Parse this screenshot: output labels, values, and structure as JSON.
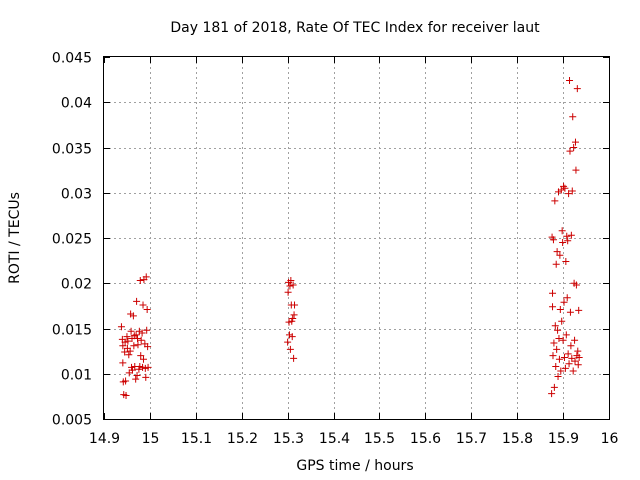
{
  "chart_data": {
    "type": "scatter",
    "title": "Day 181 of 2018, Rate Of TEC Index for receiver laut",
    "xlabel": "GPS time / hours",
    "ylabel": "ROTI / TECUs",
    "xlim": [
      14.9,
      16.0
    ],
    "ylim": [
      0.005,
      0.045
    ],
    "x_ticks": [
      "14.9",
      "15",
      "15.1",
      "15.2",
      "15.3",
      "15.4",
      "15.5",
      "15.6",
      "15.7",
      "15.8",
      "15.9",
      "16"
    ],
    "y_ticks": [
      "0.005",
      "0.01",
      "0.015",
      "0.02",
      "0.025",
      "0.03",
      "0.035",
      "0.04",
      "0.045"
    ],
    "grid": true,
    "marker": "plus",
    "color": "#cc0000",
    "points": [
      [
        14.938,
        0.0152
      ],
      [
        14.94,
        0.0138
      ],
      [
        14.941,
        0.0131
      ],
      [
        14.941,
        0.0112
      ],
      [
        14.942,
        0.0091
      ],
      [
        14.943,
        0.0077
      ],
      [
        14.945,
        0.0124
      ],
      [
        14.946,
        0.0135
      ],
      [
        14.947,
        0.0092
      ],
      [
        14.948,
        0.0076
      ],
      [
        14.95,
        0.0141
      ],
      [
        14.951,
        0.0128
      ],
      [
        14.952,
        0.0136
      ],
      [
        14.954,
        0.0121
      ],
      [
        14.955,
        0.0101
      ],
      [
        14.957,
        0.0125
      ],
      [
        14.958,
        0.0166
      ],
      [
        14.959,
        0.0147
      ],
      [
        14.96,
        0.0107
      ],
      [
        14.961,
        0.0139
      ],
      [
        14.962,
        0.0104
      ],
      [
        14.964,
        0.0164
      ],
      [
        14.965,
        0.0131
      ],
      [
        14.966,
        0.0142
      ],
      [
        14.967,
        0.0108
      ],
      [
        14.969,
        0.0094
      ],
      [
        14.97,
        0.0143
      ],
      [
        14.971,
        0.018
      ],
      [
        14.972,
        0.0098
      ],
      [
        14.973,
        0.0139
      ],
      [
        14.974,
        0.0132
      ],
      [
        14.976,
        0.0105
      ],
      [
        14.977,
        0.0147
      ],
      [
        14.978,
        0.0108
      ],
      [
        14.979,
        0.0203
      ],
      [
        14.98,
        0.012
      ],
      [
        14.981,
        0.0137
      ],
      [
        14.983,
        0.0145
      ],
      [
        14.984,
        0.0107
      ],
      [
        14.985,
        0.0176
      ],
      [
        14.986,
        0.0116
      ],
      [
        14.987,
        0.0204
      ],
      [
        14.989,
        0.0133
      ],
      [
        14.99,
        0.0106
      ],
      [
        14.991,
        0.0096
      ],
      [
        14.992,
        0.0207
      ],
      [
        14.993,
        0.0148
      ],
      [
        14.994,
        0.0171
      ],
      [
        14.995,
        0.013
      ],
      [
        14.996,
        0.0107
      ],
      [
        15.3,
        0.0135
      ],
      [
        15.301,
        0.019
      ],
      [
        15.302,
        0.0201
      ],
      [
        15.303,
        0.0157
      ],
      [
        15.304,
        0.0143
      ],
      [
        15.305,
        0.0197
      ],
      [
        15.306,
        0.0127
      ],
      [
        15.307,
        0.0203
      ],
      [
        15.308,
        0.0176
      ],
      [
        15.309,
        0.0158
      ],
      [
        15.31,
        0.0141
      ],
      [
        15.311,
        0.0161
      ],
      [
        15.312,
        0.0198
      ],
      [
        15.313,
        0.0117
      ],
      [
        15.314,
        0.0165
      ],
      [
        15.315,
        0.0176
      ],
      [
        15.875,
        0.0078
      ],
      [
        15.876,
        0.0251
      ],
      [
        15.877,
        0.0174
      ],
      [
        15.877,
        0.0189
      ],
      [
        15.878,
        0.012
      ],
      [
        15.879,
        0.0248
      ],
      [
        15.88,
        0.0134
      ],
      [
        15.881,
        0.0085
      ],
      [
        15.882,
        0.0291
      ],
      [
        15.883,
        0.0153
      ],
      [
        15.884,
        0.0108
      ],
      [
        15.885,
        0.0221
      ],
      [
        15.886,
        0.0127
      ],
      [
        15.887,
        0.0235
      ],
      [
        15.888,
        0.0148
      ],
      [
        15.889,
        0.0097
      ],
      [
        15.89,
        0.0301
      ],
      [
        15.891,
        0.0139
      ],
      [
        15.892,
        0.0116
      ],
      [
        15.893,
        0.0231
      ],
      [
        15.894,
        0.0171
      ],
      [
        15.895,
        0.0103
      ],
      [
        15.896,
        0.0303
      ],
      [
        15.897,
        0.0158
      ],
      [
        15.898,
        0.0258
      ],
      [
        15.899,
        0.0245
      ],
      [
        15.9,
        0.0137
      ],
      [
        15.901,
        0.0307
      ],
      [
        15.902,
        0.0179
      ],
      [
        15.903,
        0.0118
      ],
      [
        15.904,
        0.0305
      ],
      [
        15.905,
        0.0106
      ],
      [
        15.906,
        0.0224
      ],
      [
        15.907,
        0.0143
      ],
      [
        15.908,
        0.0252
      ],
      [
        15.909,
        0.0184
      ],
      [
        15.91,
        0.0247
      ],
      [
        15.911,
        0.0122
      ],
      [
        15.912,
        0.0299
      ],
      [
        15.913,
        0.0111
      ],
      [
        15.914,
        0.0424
      ],
      [
        15.915,
        0.0346
      ],
      [
        15.916,
        0.0168
      ],
      [
        15.917,
        0.0131
      ],
      [
        15.918,
        0.0253
      ],
      [
        15.919,
        0.0117
      ],
      [
        15.92,
        0.0302
      ],
      [
        15.921,
        0.0384
      ],
      [
        15.922,
        0.0103
      ],
      [
        15.923,
        0.035
      ],
      [
        15.924,
        0.02
      ],
      [
        15.925,
        0.0137
      ],
      [
        15.926,
        0.0114
      ],
      [
        15.927,
        0.0356
      ],
      [
        15.928,
        0.0325
      ],
      [
        15.929,
        0.0198
      ],
      [
        15.93,
        0.012
      ],
      [
        15.931,
        0.0415
      ],
      [
        15.932,
        0.0125
      ],
      [
        15.933,
        0.011
      ],
      [
        15.934,
        0.017
      ],
      [
        15.935,
        0.0118
      ]
    ]
  }
}
